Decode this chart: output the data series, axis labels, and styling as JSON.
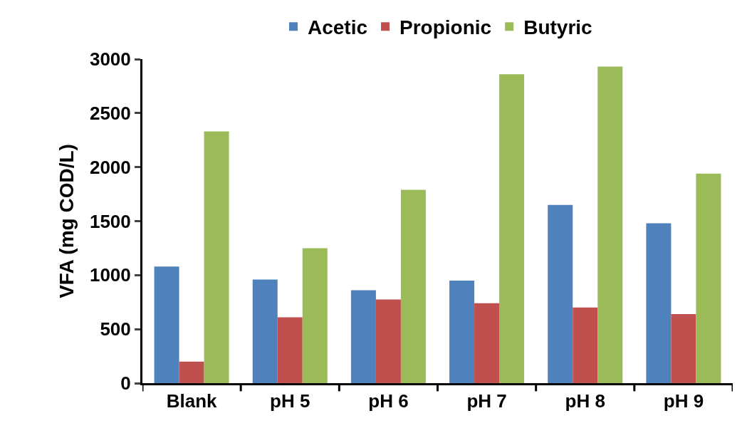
{
  "chart_data": {
    "type": "bar",
    "ylabel": "VFA (mg COD/L)",
    "categories": [
      "Blank",
      "pH 5",
      "pH 6",
      "pH 7",
      "pH 8",
      "pH 9"
    ],
    "series": [
      {
        "name": "Acetic",
        "color": "#4f81bd",
        "values": [
          1080,
          960,
          860,
          950,
          1650,
          1480
        ]
      },
      {
        "name": "Propionic",
        "color": "#c0504d",
        "values": [
          200,
          610,
          775,
          740,
          700,
          640
        ]
      },
      {
        "name": "Butyric",
        "color": "#9bbb59",
        "values": [
          2330,
          1250,
          1790,
          2860,
          2930,
          1940
        ]
      }
    ],
    "ylim": [
      0,
      3000
    ],
    "yticks": [
      0,
      500,
      1000,
      1500,
      2000,
      2500,
      3000
    ],
    "grid": false,
    "legend": "top"
  }
}
